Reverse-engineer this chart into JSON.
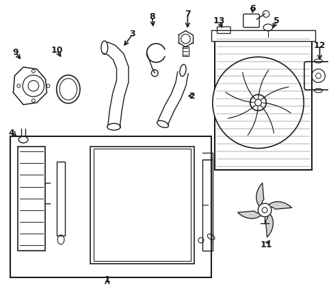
{
  "bg_color": "#ffffff",
  "line_color": "#1a1a1a",
  "figsize": [
    4.85,
    4.19
  ],
  "dpi": 100
}
